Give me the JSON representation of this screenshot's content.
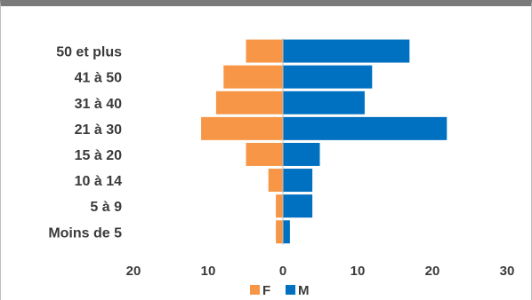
{
  "chart_data": {
    "type": "bar",
    "orientation": "horizontal",
    "layout": "population-pyramid",
    "categories": [
      "50 et plus",
      "41 à 50",
      "31 à 40",
      "21 à 30",
      "15 à 20",
      "10 à 14",
      "5 à 9",
      "Moins de 5"
    ],
    "series": [
      {
        "name": "F",
        "values": [
          5,
          8,
          9,
          11,
          5,
          2,
          1,
          1
        ],
        "color": "#f79646"
      },
      {
        "name": "M",
        "values": [
          17,
          12,
          11,
          22,
          5,
          4,
          4,
          1
        ],
        "color": "#0070c0"
      }
    ],
    "xlim": [
      -20,
      30
    ],
    "x_ticks": [
      -20,
      -10,
      0,
      10,
      20,
      30
    ],
    "x_tick_labels": [
      "20",
      "10",
      "0",
      "10",
      "20",
      "30"
    ],
    "title": "",
    "xlabel": "",
    "ylabel": "",
    "grid": false,
    "legend_position": "bottom"
  }
}
